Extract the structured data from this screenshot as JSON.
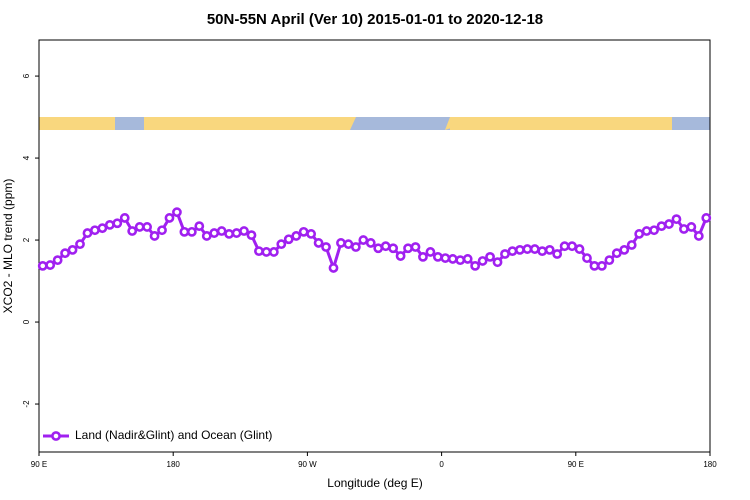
{
  "chart_data": {
    "type": "line",
    "title": "50N-55N April (Ver 10)   2015-01-01 to 2020-12-18",
    "x_label": "Longitude (deg E)",
    "y_label": "XCO2 - MLO trend (ppm)",
    "x": [
      92.5,
      97.5,
      102.5,
      107.5,
      112.5,
      117.5,
      122.5,
      127.5,
      132.5,
      137.5,
      142.5,
      147.5,
      152.5,
      157.5,
      162.5,
      167.5,
      172.5,
      177.5,
      182.5,
      187.5,
      192.5,
      197.5,
      202.5,
      207.5,
      212.5,
      217.5,
      222.5,
      227.5,
      232.5,
      237.5,
      242.5,
      247.5,
      252.5,
      257.5,
      262.5,
      267.5,
      272.5,
      277.5,
      282.5,
      287.5,
      292.5,
      297.5,
      302.5,
      307.5,
      312.5,
      317.5,
      322.5,
      327.5,
      332.5,
      337.5,
      342.5,
      347.5,
      352.5,
      357.5,
      362.5,
      367.5,
      372.5,
      377.5,
      382.5,
      387.5,
      392.5,
      397.5,
      402.5,
      407.5,
      412.5,
      417.5,
      422.5,
      427.5,
      432.5,
      437.5,
      442.5,
      447.5,
      452.5,
      457.5,
      462.5,
      467.5,
      472.5,
      477.5,
      482.5,
      487.5,
      492.5,
      497.5,
      502.5,
      507.5,
      512.5,
      517.5,
      522.5,
      527.5,
      532.5,
      537.5
    ],
    "series": [
      {
        "name": "Land (Nadir&Glint) and Ocean (Glint)",
        "color": "#a020f0",
        "values": [
          1.37,
          1.39,
          1.51,
          1.68,
          1.76,
          1.9,
          2.17,
          2.24,
          2.29,
          2.37,
          2.41,
          2.54,
          2.22,
          2.32,
          2.32,
          2.1,
          2.24,
          2.54,
          2.68,
          2.2,
          2.2,
          2.34,
          2.1,
          2.17,
          2.22,
          2.15,
          2.17,
          2.22,
          2.12,
          1.73,
          1.71,
          1.71,
          1.9,
          2.02,
          2.1,
          2.2,
          2.15,
          1.93,
          1.83,
          1.32,
          1.93,
          1.9,
          1.83,
          2.0,
          1.93,
          1.8,
          1.85,
          1.8,
          1.61,
          1.8,
          1.83,
          1.59,
          1.71,
          1.59,
          1.56,
          1.54,
          1.51,
          1.54,
          1.37,
          1.49,
          1.59,
          1.46,
          1.66,
          1.73,
          1.76,
          1.78,
          1.78,
          1.73,
          1.76,
          1.66,
          1.85,
          1.85,
          1.78,
          1.56,
          1.37,
          1.37,
          1.51,
          1.68,
          1.76,
          1.88,
          2.15,
          2.22,
          2.24,
          2.34,
          2.39,
          2.51,
          2.27,
          2.32,
          2.1,
          2.54
        ]
      }
    ],
    "xlim": [
      90,
      540
    ],
    "xticks": [
      {
        "value": 90,
        "label": "90 E"
      },
      180,
      {
        "value": 270,
        "label": "90 W"
      },
      {
        "value": 360,
        "label": "0"
      },
      {
        "value": 450,
        "label": "90 E"
      },
      {
        "value": 540,
        "label": "180"
      }
    ],
    "ylim": [
      -3.17,
      6.88
    ],
    "yticks": [
      -2,
      0,
      2,
      4,
      6
    ],
    "legend": "bottom-left"
  }
}
